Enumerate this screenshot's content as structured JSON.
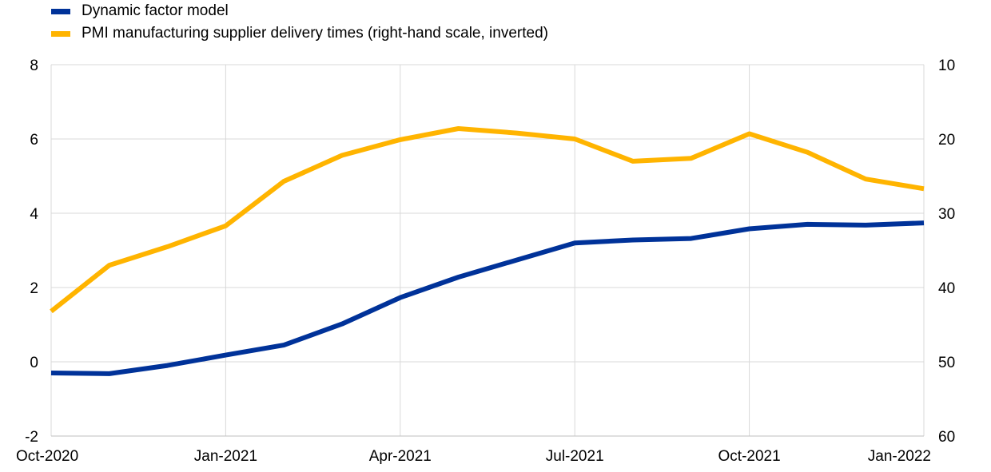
{
  "chart_data": {
    "type": "line",
    "x": [
      "Oct-2020",
      "Nov-2020",
      "Dec-2020",
      "Jan-2021",
      "Feb-2021",
      "Mar-2021",
      "Apr-2021",
      "May-2021",
      "Jun-2021",
      "Jul-2021",
      "Aug-2021",
      "Sep-2021",
      "Oct-2021",
      "Nov-2021",
      "Dec-2021",
      "Jan-2022"
    ],
    "x_tick_labels": [
      "Oct-2020",
      "Jan-2021",
      "Apr-2021",
      "Jul-2021",
      "Oct-2021",
      "Jan-2022"
    ],
    "series": [
      {
        "name": "Dynamic factor model",
        "axis": "left",
        "color": "#003299",
        "values": [
          -0.3,
          -0.32,
          -0.1,
          0.18,
          0.45,
          1.02,
          1.73,
          2.28,
          2.74,
          3.2,
          3.28,
          3.32,
          3.58,
          3.7,
          3.68,
          3.74
        ]
      },
      {
        "name": "PMI manufacturing supplier delivery times (right-hand scale, inverted)",
        "axis": "right",
        "color": "#FFB400",
        "values": [
          43.2,
          37.0,
          34.5,
          31.7,
          25.7,
          22.2,
          20.1,
          18.6,
          19.2,
          20.0,
          23.0,
          22.6,
          19.3,
          21.8,
          25.4,
          26.7
        ]
      }
    ],
    "left_axis": {
      "ylim": [
        -2,
        8
      ],
      "ticks": [
        -2,
        0,
        2,
        4,
        6,
        8
      ]
    },
    "right_axis": {
      "ylim": [
        60,
        10
      ],
      "inverted": true,
      "ticks": [
        10,
        20,
        30,
        40,
        50,
        60
      ]
    },
    "grid": true,
    "legend_placement": "top-left"
  }
}
